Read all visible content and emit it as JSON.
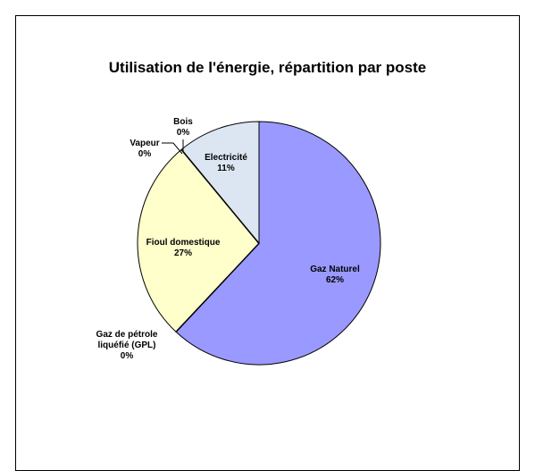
{
  "chart_data": {
    "type": "pie",
    "title": "Utilisation de l'énergie, répartition par poste",
    "categories": [
      "Gaz Naturel",
      "Gaz de pétrole liquéfié (GPL)",
      "Fioul domestique",
      "Vapeur",
      "Bois",
      "Electricité"
    ],
    "values": [
      62,
      0,
      27,
      0,
      0,
      11
    ],
    "value_labels": [
      "62%",
      "0%",
      "27%",
      "0%",
      "0%",
      "11%"
    ],
    "colors": [
      "#9999ff",
      "#993366",
      "#ffffcc",
      "#ccffff",
      "#660066",
      "#dce6f2"
    ]
  }
}
